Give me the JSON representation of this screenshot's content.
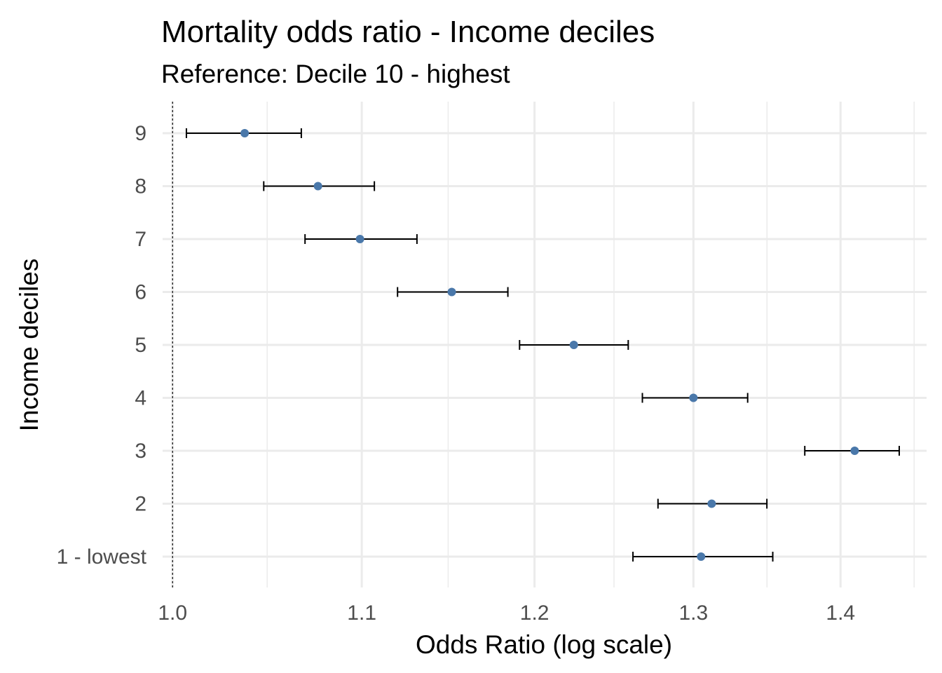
{
  "chart_data": {
    "type": "scatter",
    "title": "Mortality odds ratio - Income deciles",
    "subtitle": "Reference: Decile 10 - highest",
    "xlabel": "Odds Ratio (log scale)",
    "ylabel": "Income deciles",
    "x_scale": "log",
    "xlim": [
      0.995,
      1.462
    ],
    "x_ticks": [
      1.0,
      1.1,
      1.2,
      1.3,
      1.4
    ],
    "x_tick_labels": [
      "1.0",
      "1.1",
      "1.2",
      "1.3",
      "1.4"
    ],
    "reference_line": 1.0,
    "grid": true,
    "categories": [
      "1 - lowest",
      "2",
      "3",
      "4",
      "5",
      "6",
      "7",
      "8",
      "9"
    ],
    "estimates": [
      1.305,
      1.312,
      1.41,
      1.3,
      1.224,
      1.151,
      1.099,
      1.076,
      1.037
    ],
    "ci_lower": [
      1.261,
      1.277,
      1.375,
      1.267,
      1.191,
      1.12,
      1.069,
      1.047,
      1.007
    ],
    "ci_upper": [
      1.353,
      1.349,
      1.442,
      1.336,
      1.258,
      1.184,
      1.131,
      1.107,
      1.067
    ],
    "colors": {
      "point": "#4a78aa",
      "errorbar": "#000000",
      "grid": "#ebebeb",
      "reference": "#000000"
    }
  }
}
